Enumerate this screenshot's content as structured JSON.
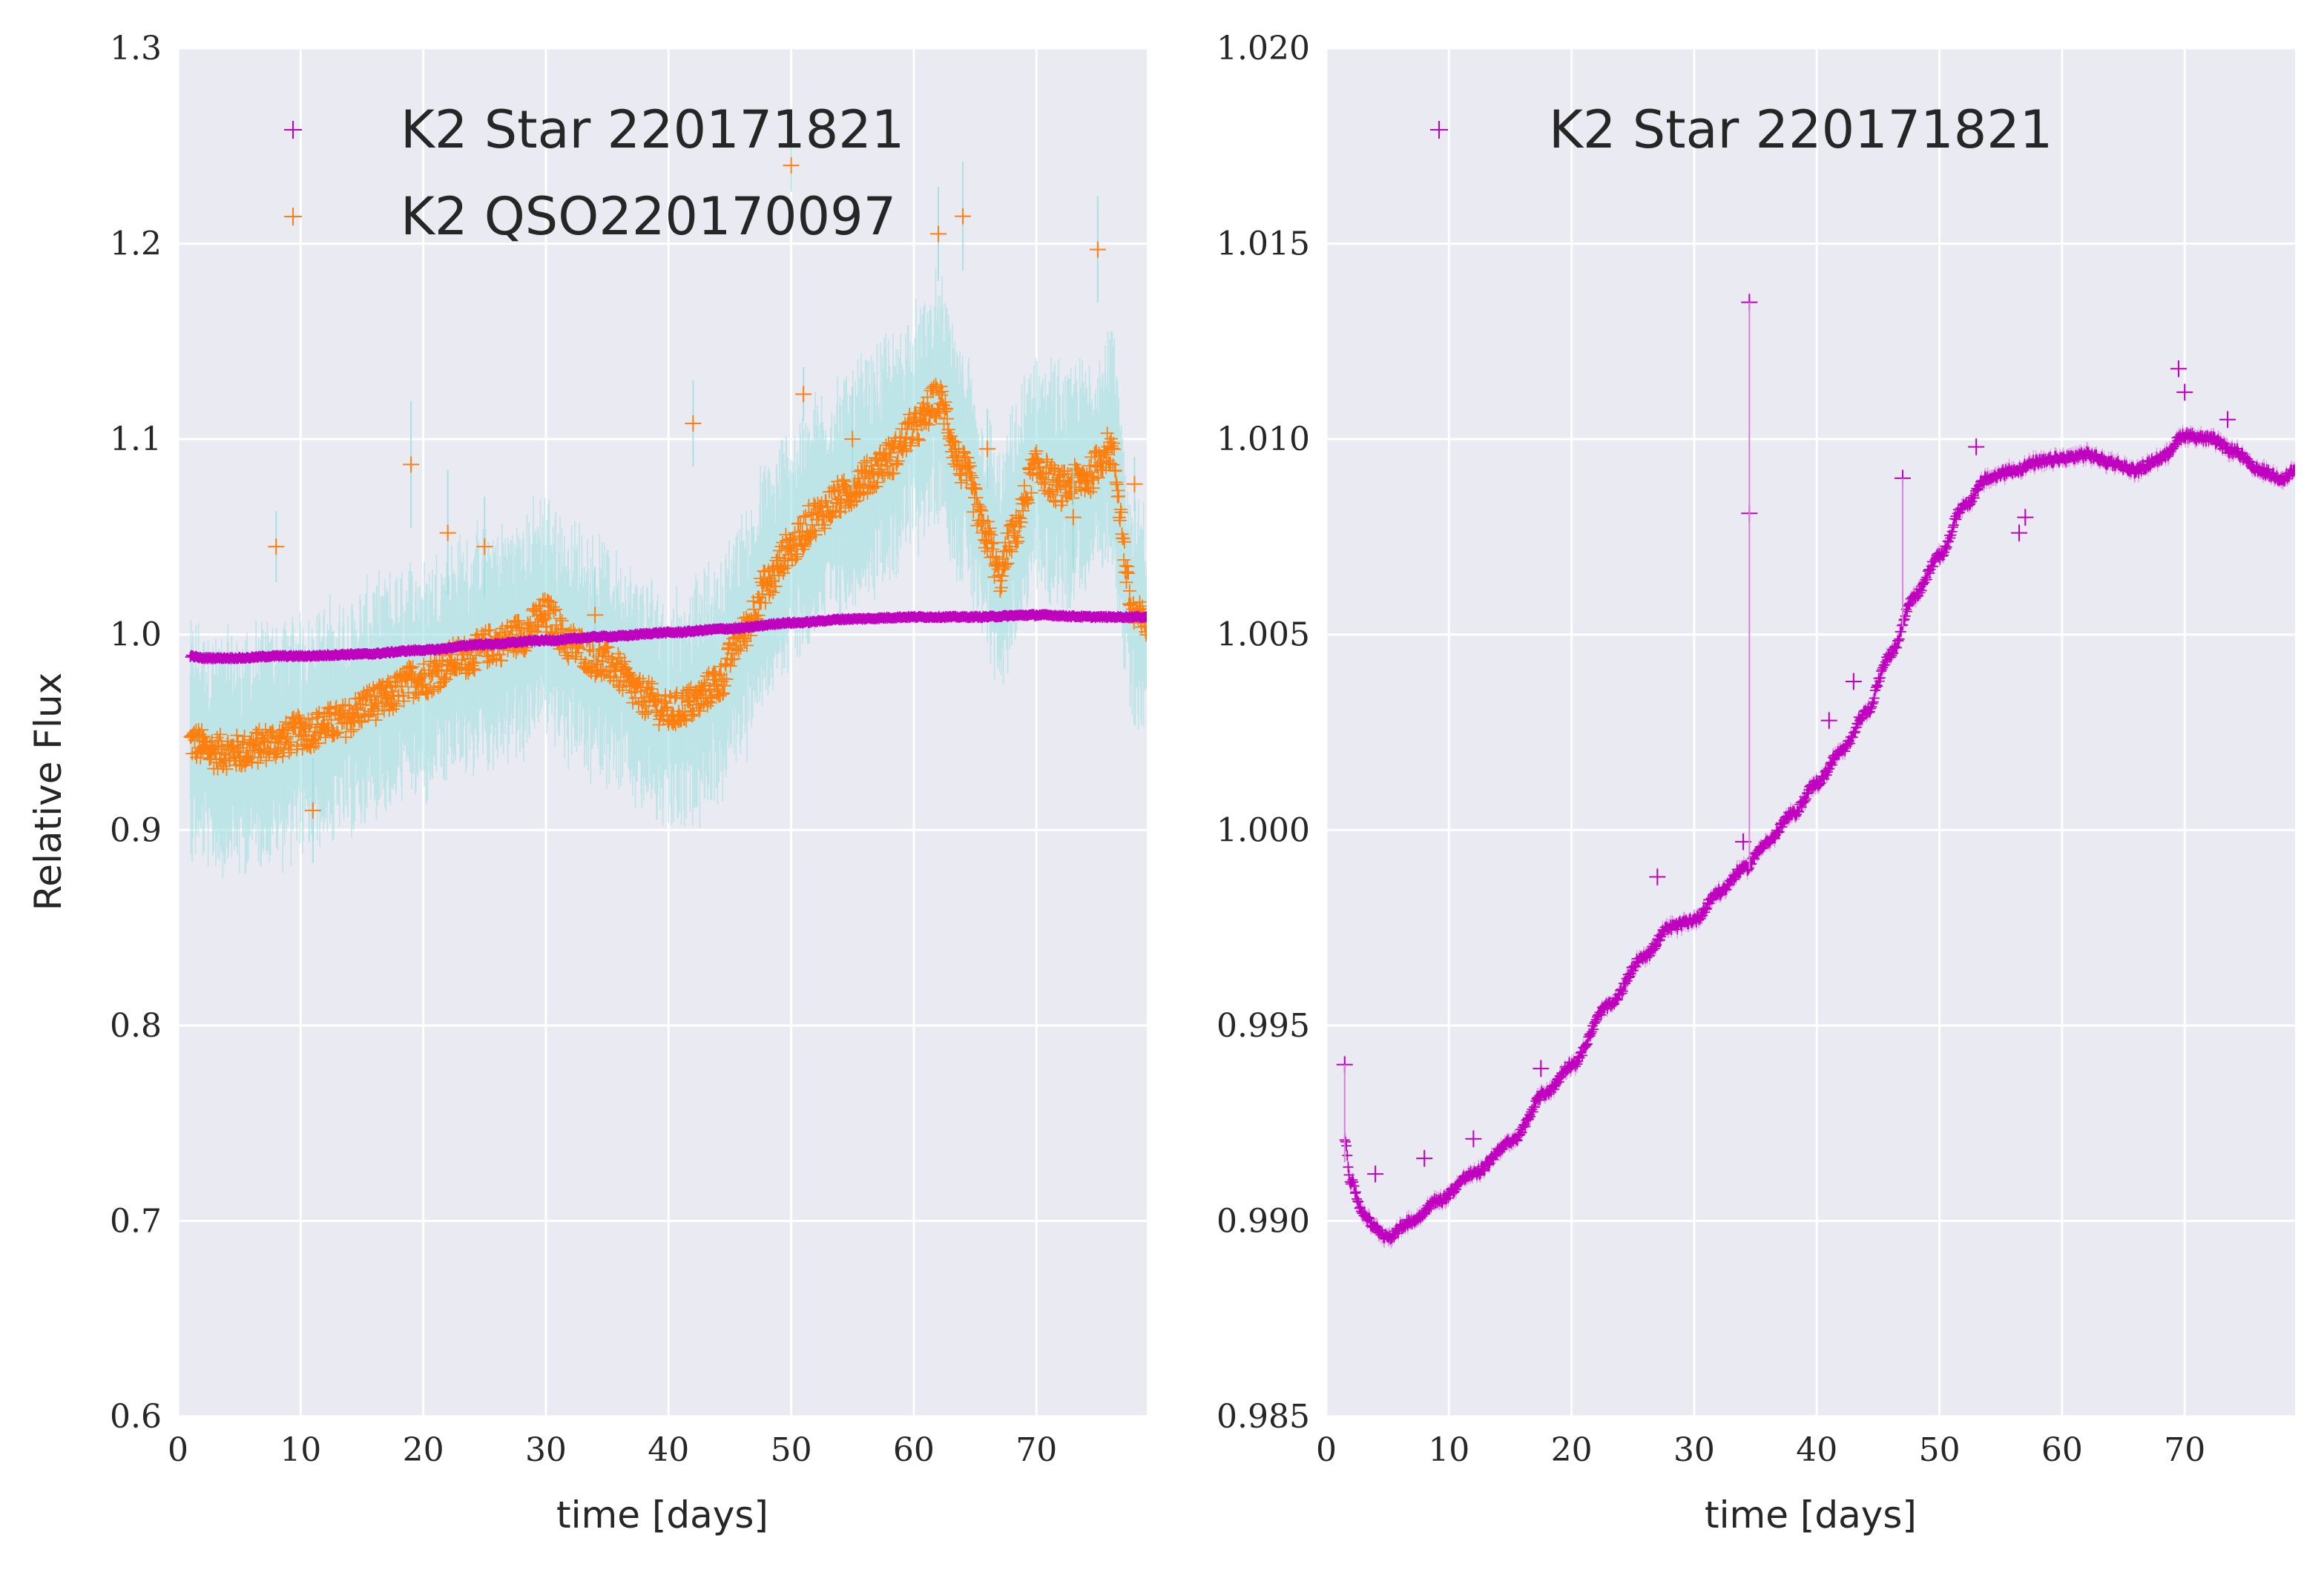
{
  "chart_data": [
    {
      "type": "scatter",
      "xlabel": "time [days]",
      "ylabel": "Relative Flux",
      "xlim": [
        0,
        79
      ],
      "ylim": [
        0.6,
        1.3
      ],
      "xticks": [
        0,
        10,
        20,
        30,
        40,
        50,
        60,
        70
      ],
      "yticks": [
        0.6,
        0.7,
        0.8,
        0.9,
        1.0,
        1.1,
        1.2,
        1.3
      ],
      "ytick_decimals": 1,
      "grid": true,
      "legend_position": "top",
      "series": [
        {
          "name": "K2 Star 220171821",
          "color": "#bf00bf",
          "marker": "plus",
          "errorbar_color": "#d980d9",
          "points": [
            [
              1,
              0.989
            ],
            [
              2,
              0.988
            ],
            [
              3,
              0.988
            ],
            [
              5,
              0.988
            ],
            [
              8,
              0.989
            ],
            [
              10,
              0.989
            ],
            [
              15,
              0.99
            ],
            [
              20,
              0.992
            ],
            [
              25,
              0.995
            ],
            [
              30,
              0.997
            ],
            [
              35,
              0.999
            ],
            [
              40,
              1.001
            ],
            [
              45,
              1.003
            ],
            [
              50,
              1.006
            ],
            [
              55,
              1.008
            ],
            [
              60,
              1.009
            ],
            [
              65,
              1.009
            ],
            [
              70,
              1.01
            ],
            [
              75,
              1.009
            ],
            [
              79,
              1.009
            ]
          ]
        },
        {
          "name": "K2 QSO220170097",
          "color": "#ff7f0e",
          "marker": "plus",
          "errorbar_color": "#98dede",
          "points": [
            [
              1,
              0.945
            ],
            [
              3,
              0.94
            ],
            [
              5,
              0.94
            ],
            [
              8,
              0.945
            ],
            [
              10,
              0.95
            ],
            [
              13,
              0.955
            ],
            [
              16,
              0.965
            ],
            [
              20,
              0.978
            ],
            [
              23,
              0.988
            ],
            [
              26,
              0.995
            ],
            [
              28,
              1.0
            ],
            [
              30,
              1.01
            ],
            [
              32,
              0.995
            ],
            [
              35,
              0.985
            ],
            [
              38,
              0.968
            ],
            [
              40,
              0.96
            ],
            [
              42,
              0.965
            ],
            [
              44,
              0.975
            ],
            [
              46,
              1.0
            ],
            [
              48,
              1.025
            ],
            [
              50,
              1.045
            ],
            [
              52,
              1.06
            ],
            [
              54,
              1.07
            ],
            [
              56,
              1.08
            ],
            [
              58,
              1.09
            ],
            [
              60,
              1.105
            ],
            [
              62,
              1.12
            ],
            [
              64,
              1.085
            ],
            [
              66,
              1.05
            ],
            [
              67,
              1.03
            ],
            [
              68,
              1.05
            ],
            [
              70,
              1.085
            ],
            [
              72,
              1.075
            ],
            [
              74,
              1.08
            ],
            [
              76,
              1.095
            ],
            [
              78,
              1.01
            ],
            [
              79,
              1.005
            ]
          ],
          "outliers": [
            [
              8,
              1.045
            ],
            [
              11,
              0.91
            ],
            [
              19,
              1.087
            ],
            [
              22,
              1.052
            ],
            [
              25,
              1.045
            ],
            [
              34,
              1.01
            ],
            [
              42,
              1.108
            ],
            [
              50,
              1.24
            ],
            [
              51,
              1.123
            ],
            [
              55,
              1.1
            ],
            [
              62,
              1.205
            ],
            [
              64,
              1.214
            ],
            [
              66,
              1.095
            ],
            [
              73,
              1.06
            ],
            [
              75,
              1.197
            ],
            [
              78,
              1.077
            ]
          ]
        }
      ]
    },
    {
      "type": "scatter",
      "xlabel": "time [days]",
      "ylabel": "",
      "xlim": [
        0,
        79
      ],
      "ylim": [
        0.985,
        1.02
      ],
      "xticks": [
        0,
        10,
        20,
        30,
        40,
        50,
        60,
        70
      ],
      "yticks": [
        0.985,
        0.99,
        0.995,
        1.0,
        1.005,
        1.01,
        1.015,
        1.02
      ],
      "ytick_decimals": 3,
      "grid": true,
      "legend_position": "top",
      "series": [
        {
          "name": "K2 Star 220171821",
          "color": "#bf00bf",
          "marker": "plus",
          "errorbar_color": "#d980d9",
          "points": [
            [
              1.5,
              0.9921
            ],
            [
              2,
              0.991
            ],
            [
              3,
              0.9902
            ],
            [
              4,
              0.9898
            ],
            [
              5,
              0.9896
            ],
            [
              7,
              0.99
            ],
            [
              9,
              0.9905
            ],
            [
              12,
              0.9912
            ],
            [
              15,
              0.992
            ],
            [
              18,
              0.9933
            ],
            [
              20,
              0.994
            ],
            [
              23,
              0.9955
            ],
            [
              26,
              0.9968
            ],
            [
              28,
              0.9975
            ],
            [
              30,
              0.9977
            ],
            [
              32,
              0.9984
            ],
            [
              34,
              0.999
            ],
            [
              36,
              0.9997
            ],
            [
              38,
              1.0004
            ],
            [
              40,
              1.0012
            ],
            [
              42,
              1.002
            ],
            [
              44,
              1.003
            ],
            [
              46,
              1.0045
            ],
            [
              48,
              1.006
            ],
            [
              50,
              1.007
            ],
            [
              52,
              1.0083
            ],
            [
              54,
              1.009
            ],
            [
              56,
              1.0092
            ],
            [
              58,
              1.0094
            ],
            [
              60,
              1.0095
            ],
            [
              62,
              1.0096
            ],
            [
              64,
              1.0094
            ],
            [
              66,
              1.0092
            ],
            [
              68,
              1.0095
            ],
            [
              70,
              1.0101
            ],
            [
              72,
              1.01
            ],
            [
              74,
              1.0097
            ],
            [
              76,
              1.0092
            ],
            [
              78,
              1.009
            ],
            [
              79,
              1.0092
            ]
          ],
          "outliers": [
            [
              1.5,
              0.994
            ],
            [
              4,
              0.9912
            ],
            [
              8,
              0.9916
            ],
            [
              12,
              0.9921
            ],
            [
              17.5,
              0.9939
            ],
            [
              27,
              0.9988
            ],
            [
              34,
              0.9997
            ],
            [
              34.5,
              1.0081
            ],
            [
              34.5,
              1.0135
            ],
            [
              41,
              1.0028
            ],
            [
              43,
              1.0038
            ],
            [
              47,
              1.009
            ],
            [
              53,
              1.0098
            ],
            [
              56.5,
              1.0076
            ],
            [
              57,
              1.008
            ],
            [
              69.5,
              1.0118
            ],
            [
              70,
              1.0112
            ],
            [
              73.5,
              1.0105
            ]
          ]
        }
      ]
    }
  ]
}
